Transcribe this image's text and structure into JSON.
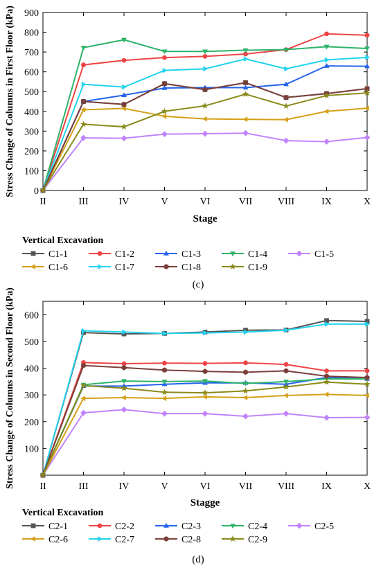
{
  "chart_data": [
    {
      "type": "line",
      "panel_label": "(c)",
      "xlabel": "Stage",
      "ylabel": "Stress Change of Columns in First Floor (kPa)",
      "categories": [
        "II",
        "III",
        "IV",
        "V",
        "VI",
        "VII",
        "VIII",
        "IX",
        "X"
      ],
      "ylim": [
        0,
        900
      ],
      "yticks": [
        0,
        100,
        200,
        300,
        400,
        500,
        600,
        700,
        800,
        900
      ],
      "legend_title": "Vertical Excavation",
      "legend_position": "bottom",
      "series": [
        {
          "name": "C1-1",
          "color": "#555555",
          "marker": "square",
          "values": [
            0,
            450,
            435,
            540,
            510,
            545,
            470,
            490,
            515
          ]
        },
        {
          "name": "C1-2",
          "color": "#ef4444",
          "marker": "circle",
          "values": [
            0,
            635,
            658,
            672,
            678,
            690,
            712,
            792,
            785
          ]
        },
        {
          "name": "C1-3",
          "color": "#2563eb",
          "marker": "triangle-up",
          "values": [
            0,
            450,
            482,
            518,
            520,
            520,
            537,
            630,
            628
          ]
        },
        {
          "name": "C1-4",
          "color": "#2eb369",
          "marker": "triangle-down",
          "values": [
            0,
            722,
            762,
            703,
            703,
            709,
            712,
            727,
            718
          ]
        },
        {
          "name": "C1-5",
          "color": "#c084fc",
          "marker": "diamond",
          "values": [
            0,
            266,
            264,
            285,
            287,
            290,
            252,
            247,
            268
          ]
        },
        {
          "name": "C1-6",
          "color": "#d4a017",
          "marker": "triangle-left",
          "values": [
            0,
            408,
            415,
            375,
            362,
            360,
            358,
            400,
            416
          ]
        },
        {
          "name": "C1-7",
          "color": "#22d3ee",
          "marker": "triangle-right",
          "values": [
            0,
            537,
            523,
            607,
            615,
            665,
            615,
            660,
            673
          ]
        },
        {
          "name": "C1-8",
          "color": "#7b3f3a",
          "marker": "hexagon",
          "values": [
            0,
            450,
            435,
            540,
            510,
            545,
            470,
            490,
            515
          ]
        },
        {
          "name": "C1-9",
          "color": "#8a8a1a",
          "marker": "star",
          "values": [
            0,
            335,
            322,
            400,
            428,
            487,
            427,
            480,
            493
          ]
        }
      ]
    },
    {
      "type": "line",
      "panel_label": "(d)",
      "xlabel": "Stagge",
      "ylabel": "Stress Change of Columns in Second Floor (kPa)",
      "categories": [
        "II",
        "III",
        "IV",
        "V",
        "VI",
        "VII",
        "VIII",
        "IX",
        "X"
      ],
      "ylim": [
        0,
        650
      ],
      "yticks": [
        100,
        200,
        300,
        400,
        500,
        600
      ],
      "legend_title": "Vertical Excavation",
      "legend_position": "bottom",
      "series": [
        {
          "name": "C2-1",
          "color": "#555555",
          "marker": "square",
          "values": [
            0,
            533,
            528,
            530,
            535,
            542,
            543,
            578,
            575
          ]
        },
        {
          "name": "C2-2",
          "color": "#ef4444",
          "marker": "circle",
          "values": [
            0,
            421,
            417,
            419,
            418,
            420,
            414,
            390,
            390
          ]
        },
        {
          "name": "C2-3",
          "color": "#2563eb",
          "marker": "triangle-up",
          "values": [
            0,
            333,
            333,
            340,
            345,
            345,
            340,
            365,
            360
          ]
        },
        {
          "name": "C2-4",
          "color": "#2eb369",
          "marker": "triangle-down",
          "values": [
            0,
            338,
            352,
            350,
            352,
            343,
            350,
            360,
            360
          ]
        },
        {
          "name": "C2-5",
          "color": "#c084fc",
          "marker": "diamond",
          "values": [
            0,
            233,
            245,
            230,
            230,
            220,
            230,
            215,
            216
          ]
        },
        {
          "name": "C2-6",
          "color": "#d4a017",
          "marker": "triangle-left",
          "values": [
            0,
            287,
            290,
            287,
            293,
            290,
            298,
            302,
            298
          ]
        },
        {
          "name": "C2-7",
          "color": "#22d3ee",
          "marker": "triangle-right",
          "values": [
            0,
            540,
            535,
            530,
            532,
            535,
            542,
            565,
            565
          ]
        },
        {
          "name": "C2-8",
          "color": "#7b3f3a",
          "marker": "hexagon",
          "values": [
            0,
            410,
            402,
            393,
            388,
            385,
            390,
            370,
            365
          ]
        },
        {
          "name": "C2-9",
          "color": "#8a8a1a",
          "marker": "star",
          "values": [
            0,
            335,
            325,
            310,
            308,
            315,
            330,
            348,
            340
          ]
        }
      ]
    }
  ]
}
